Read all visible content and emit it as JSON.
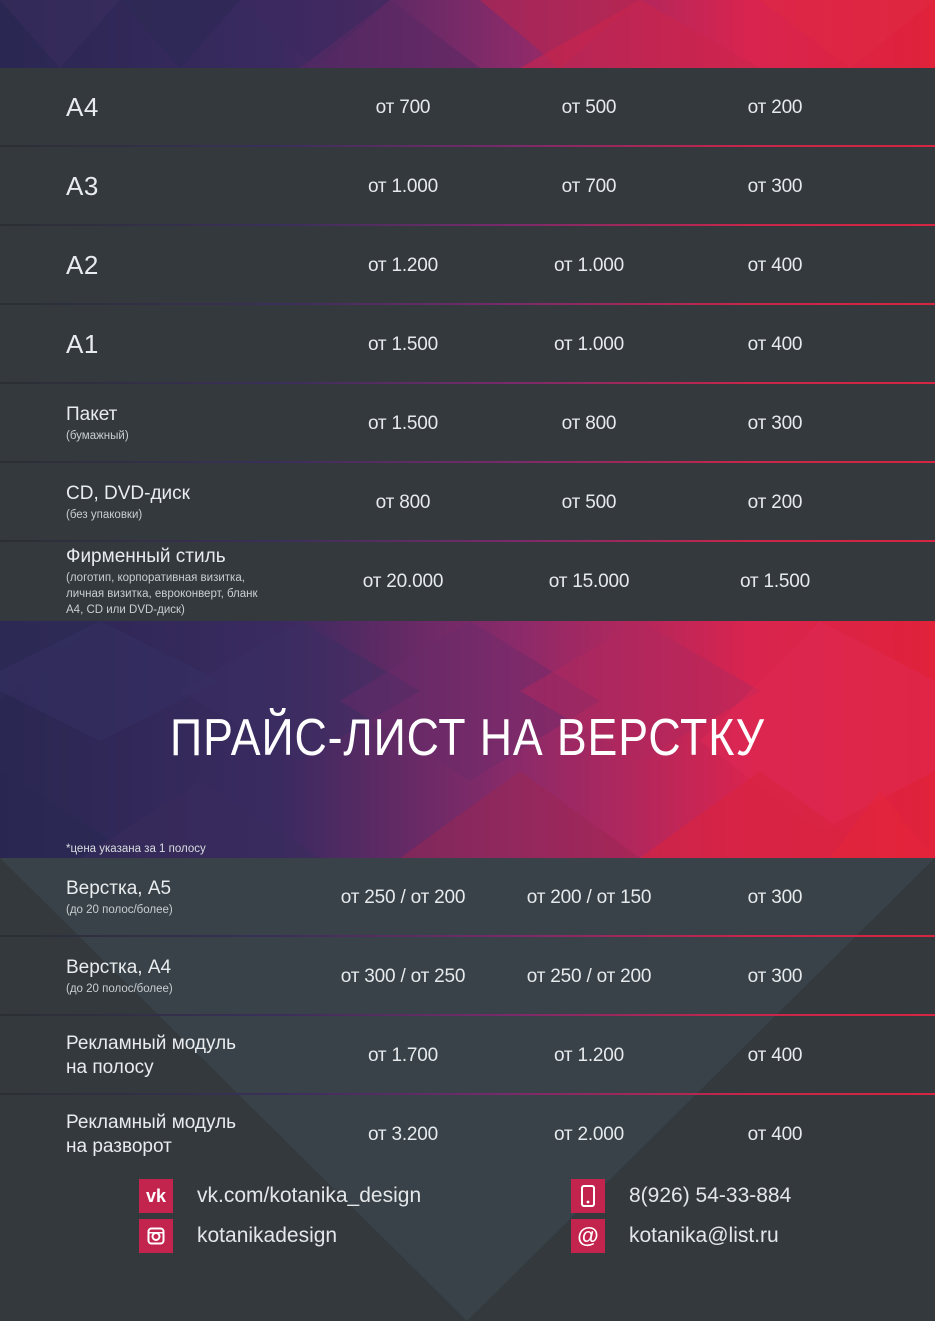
{
  "price_rows": [
    {
      "name": "А4",
      "sub": "",
      "p1": "от 700",
      "p2": "от 500",
      "p3": "от 200"
    },
    {
      "name": "А3",
      "sub": "",
      "p1": "от 1.000",
      "p2": "от 700",
      "p3": "от 300"
    },
    {
      "name": "А2",
      "sub": "",
      "p1": "от 1.200",
      "p2": "от 1.000",
      "p3": "от 400"
    },
    {
      "name": "А1",
      "sub": "",
      "p1": "от 1.500",
      "p2": "от 1.000",
      "p3": "от 400"
    },
    {
      "name": "Пакет",
      "sub": "(бумажный)",
      "p1": "от 1.500",
      "p2": "от 800",
      "p3": "от 300"
    },
    {
      "name": "CD, DVD-диск",
      "sub": "(без упаковки)",
      "p1": "от 800",
      "p2": "от 500",
      "p3": "от 200"
    },
    {
      "name": "Фирменный стиль",
      "sub": "(логотип, корпоративная визитка, личная визитка, евроконверт, бланк А4, CD или DVD-диск)",
      "p1": "от 20.000",
      "p2": "от 15.000",
      "p3": "от 1.500"
    }
  ],
  "layout_section": {
    "title": "ПРАЙС-ЛИСТ НА ВЕРСТКУ",
    "note": "*цена указана за 1 полосу",
    "rows": [
      {
        "name": "Верстка, А5",
        "sub": "(до 20 полос/более)",
        "p1": "от 250 / от 200",
        "p2": "от 200 / от 150",
        "p3": "от 300"
      },
      {
        "name": "Верстка, А4",
        "sub": "(до 20 полос/более)",
        "p1": "от 300 / от 250",
        "p2": "от 250 / от 200",
        "p3": "от 300"
      },
      {
        "name": "Рекламный модуль на полосу",
        "sub": "",
        "p1": "от 1.700",
        "p2": "от 1.200",
        "p3": "от 400"
      },
      {
        "name": "Рекламный модуль на разворот",
        "sub": "",
        "p1": "от 3.200",
        "p2": "от 2.000",
        "p3": "от 400"
      }
    ]
  },
  "contacts": {
    "vk": "vk.com/kotanika_design",
    "instagram": "kotanikadesign",
    "phone": "8(926) 54-33-884",
    "email": "kotanika@list.ru",
    "vk_icon": "vk-icon",
    "instagram_icon": "instagram-icon",
    "phone_icon": "phone-icon",
    "email_icon": "at-icon",
    "icon_color": "#c2244e"
  },
  "colors": {
    "background": "#33393d",
    "accent": "#d8244f"
  }
}
